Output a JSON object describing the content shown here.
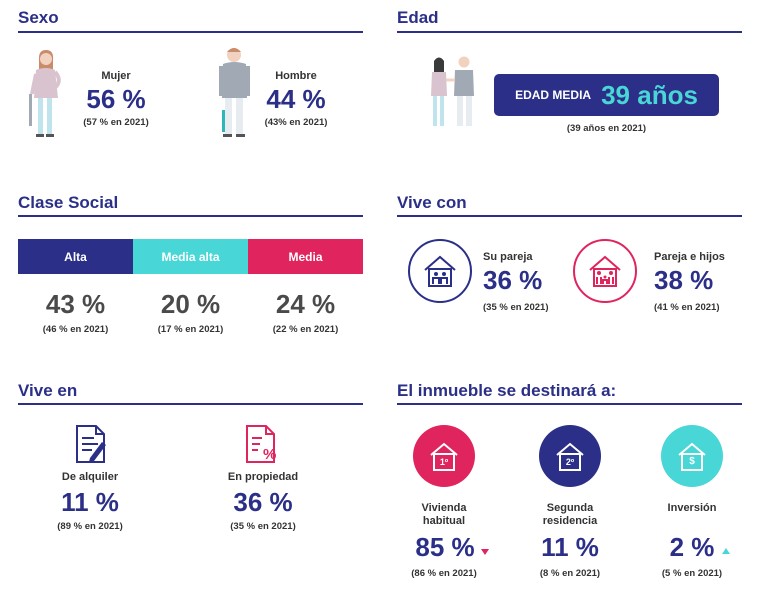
{
  "sexo": {
    "title": "Sexo",
    "mujer": {
      "label": "Mujer",
      "value": "56 %",
      "prev": "(57 % en 2021)"
    },
    "hombre": {
      "label": "Hombre",
      "value": "44 %",
      "prev": "(43% en 2021)"
    }
  },
  "edad": {
    "title": "Edad",
    "box_label": "EDAD MEDIA",
    "box_value": "39 años",
    "prev": "(39 años en 2021)"
  },
  "clase_social": {
    "title": "Clase Social",
    "segments": [
      {
        "label": "Alta",
        "value": "43 %",
        "prev": "(46 % en 2021)",
        "color": "#2b2f87"
      },
      {
        "label": "Media alta",
        "value": "20 %",
        "prev": "(17 % en 2021)",
        "color": "#49d6d6"
      },
      {
        "label": "Media",
        "value": "24 %",
        "prev": "(22 % en 2021)",
        "color": "#e0245e"
      }
    ]
  },
  "vive_con": {
    "title": "Vive con",
    "items": [
      {
        "label": "Su pareja",
        "value": "36 %",
        "prev": "(35 % en 2021)",
        "icon": "house-couple-icon",
        "color": "#2b2f87"
      },
      {
        "label": "Pareja e hijos",
        "value": "38 %",
        "prev": "(41 % en 2021)",
        "icon": "house-family-icon",
        "color": "#e0245e"
      }
    ]
  },
  "vive_en": {
    "title": "Vive en",
    "items": [
      {
        "label": "De alquiler",
        "value": "11 %",
        "prev": "(89 % en 2021)",
        "icon": "rental-document-icon",
        "color": "#2b2f87"
      },
      {
        "label": "En propiedad",
        "value": "36 %",
        "prev": "(35 % en 2021)",
        "icon": "property-document-icon",
        "color": "#e0245e"
      }
    ]
  },
  "inmueble": {
    "title": "El inmueble se destinará a:",
    "items": [
      {
        "label_line1": "Vivienda",
        "label_line2": "habitual",
        "badge": "1º",
        "value": "85 %",
        "prev": "(86 % en 2021)",
        "trend": "down",
        "color": "#e0245e",
        "icon": "house-first-icon"
      },
      {
        "label_line1": "Segunda",
        "label_line2": "residencia",
        "badge": "2º",
        "value": "11 %",
        "prev": "(8 % en 2021)",
        "trend": "none",
        "color": "#2b2f87",
        "icon": "house-second-icon"
      },
      {
        "label_line1": "Inversión",
        "label_line2": "",
        "badge": "$",
        "value": "2 %",
        "prev": "(5 % en 2021)",
        "trend": "up",
        "color": "#49d6d6",
        "icon": "house-investment-icon"
      }
    ]
  }
}
